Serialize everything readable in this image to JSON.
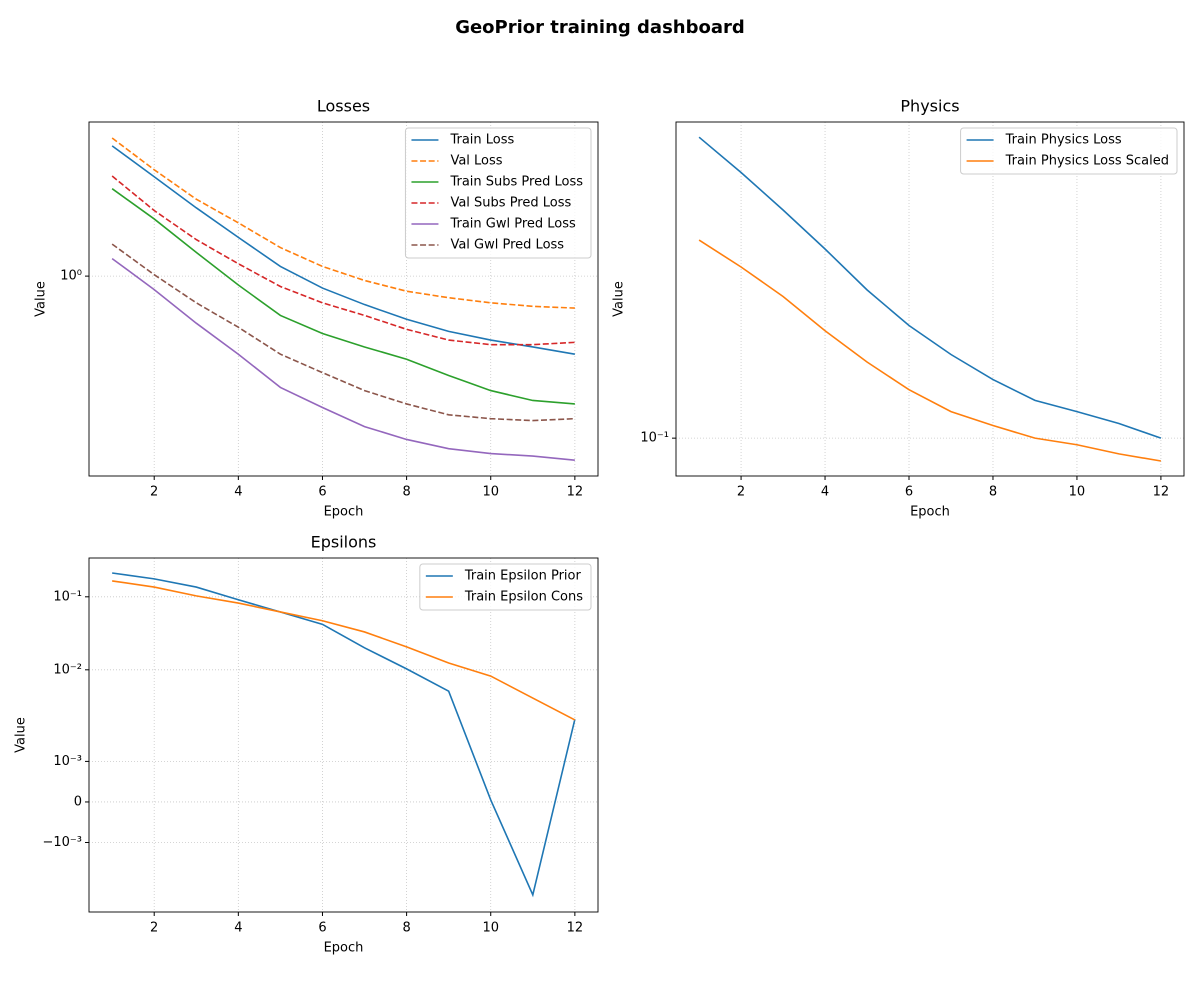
{
  "title": "GeoPrior training dashboard",
  "chart_data": [
    {
      "type": "line",
      "title": "Losses",
      "x_label": "Epoch",
      "y_label": "Value",
      "x": [
        1,
        2,
        3,
        4,
        5,
        6,
        7,
        8,
        9,
        10,
        11,
        12
      ],
      "xlim": [
        0.45,
        12.55
      ],
      "xticks": [
        2,
        4,
        6,
        8,
        10,
        12
      ],
      "yscale": "log",
      "ylim": [
        0.248,
        2.93
      ],
      "yticks": [
        {
          "value": 1,
          "label": "10⁰"
        }
      ],
      "grid": true,
      "legend": "upper right",
      "series": [
        {
          "name": "Train Loss",
          "color": "#1f77b4",
          "linestyle": "solid",
          "values": [
            2.48,
            2.0,
            1.61,
            1.31,
            1.07,
            0.92,
            0.82,
            0.74,
            0.68,
            0.64,
            0.61,
            0.58
          ]
        },
        {
          "name": "Val Loss",
          "color": "#ff7f0e",
          "linestyle": "dashed",
          "values": [
            2.62,
            2.1,
            1.71,
            1.45,
            1.22,
            1.07,
            0.97,
            0.9,
            0.86,
            0.83,
            0.81,
            0.8
          ]
        },
        {
          "name": "Train Subs Pred Loss",
          "color": "#2ca02c",
          "linestyle": "solid",
          "values": [
            1.84,
            1.49,
            1.18,
            0.94,
            0.76,
            0.67,
            0.61,
            0.56,
            0.5,
            0.45,
            0.42,
            0.41
          ]
        },
        {
          "name": "Val Subs Pred Loss",
          "color": "#d62728",
          "linestyle": "dashed",
          "values": [
            2.01,
            1.58,
            1.29,
            1.09,
            0.93,
            0.83,
            0.76,
            0.69,
            0.64,
            0.62,
            0.62,
            0.63
          ]
        },
        {
          "name": "Train Gwl Pred Loss",
          "color": "#9467bd",
          "linestyle": "solid",
          "values": [
            1.13,
            0.91,
            0.72,
            0.58,
            0.46,
            0.4,
            0.35,
            0.32,
            0.3,
            0.29,
            0.285,
            0.277
          ]
        },
        {
          "name": "Val Gwl Pred Loss",
          "color": "#8c564b",
          "linestyle": "dashed",
          "values": [
            1.25,
            1.01,
            0.83,
            0.7,
            0.58,
            0.51,
            0.45,
            0.41,
            0.38,
            0.37,
            0.365,
            0.37
          ]
        }
      ]
    },
    {
      "type": "line",
      "title": "Physics",
      "x_label": "Epoch",
      "y_label": "Value",
      "x": [
        1,
        2,
        3,
        4,
        5,
        6,
        7,
        8,
        9,
        10,
        11,
        12
      ],
      "xlim": [
        0.45,
        12.55
      ],
      "xticks": [
        2,
        4,
        6,
        8,
        10,
        12
      ],
      "yscale": "log",
      "ylim": [
        0.084,
        0.429
      ],
      "yticks": [
        {
          "value": 0.1,
          "label": "10⁻¹"
        }
      ],
      "grid": true,
      "legend": "upper right",
      "series": [
        {
          "name": "Train Physics Loss",
          "color": "#1f77b4",
          "linestyle": "solid",
          "values": [
            0.4,
            0.34,
            0.286,
            0.239,
            0.198,
            0.168,
            0.147,
            0.131,
            0.119,
            0.113,
            0.107,
            0.1
          ]
        },
        {
          "name": "Train Physics Loss Scaled",
          "color": "#ff7f0e",
          "linestyle": "solid",
          "values": [
            0.249,
            0.22,
            0.192,
            0.164,
            0.142,
            0.125,
            0.113,
            0.106,
            0.1,
            0.097,
            0.093,
            0.09
          ]
        }
      ]
    },
    {
      "type": "line",
      "title": "Epsilons",
      "x_label": "Epoch",
      "y_label": "Value",
      "x": [
        1,
        2,
        3,
        4,
        5,
        6,
        7,
        8,
        9,
        10,
        11,
        12
      ],
      "xlim": [
        0.45,
        12.55
      ],
      "xticks": [
        2,
        4,
        6,
        8,
        10,
        12
      ],
      "yscale": "symlog",
      "linthresh": 0.002,
      "linscale": 1,
      "ylim": [
        -0.00498,
        0.34
      ],
      "yticks": [
        {
          "value": 0.1,
          "label": "10⁻¹"
        },
        {
          "value": 0.01,
          "label": "10⁻²"
        },
        {
          "value": 0.001,
          "label": "10⁻³"
        },
        0,
        {
          "value": -0.001,
          "label": "−10⁻³"
        }
      ],
      "grid": true,
      "legend": "upper right",
      "series": [
        {
          "name": "Train Epsilon Prior",
          "color": "#1f77b4",
          "linestyle": "solid",
          "values": [
            0.212,
            0.176,
            0.136,
            0.091,
            0.062,
            0.042,
            0.02,
            0.0103,
            0.0051,
            5e-05,
            -0.0029,
            0.0021
          ]
        },
        {
          "name": "Train Epsilon Cons",
          "color": "#ff7f0e",
          "linestyle": "solid",
          "values": [
            0.165,
            0.136,
            0.103,
            0.082,
            0.062,
            0.047,
            0.033,
            0.0206,
            0.0124,
            0.0082,
            0.0041,
            0.00206
          ]
        }
      ]
    }
  ]
}
